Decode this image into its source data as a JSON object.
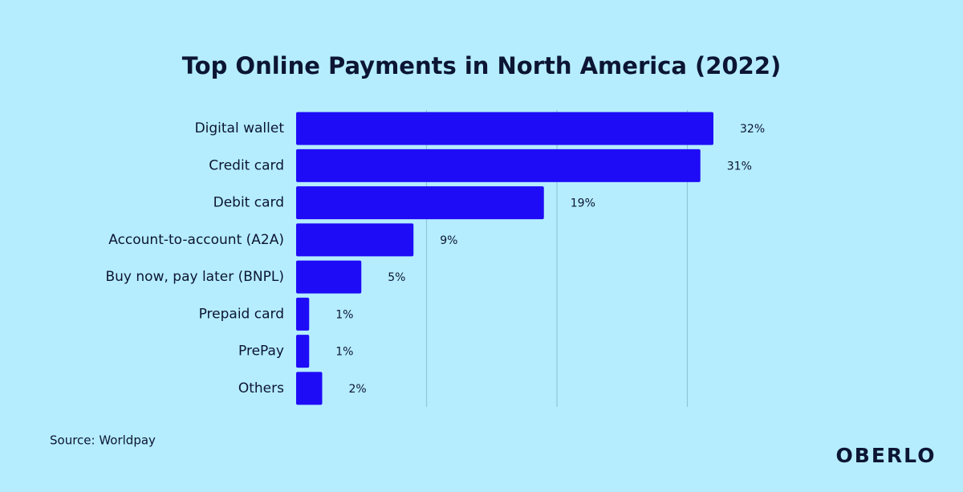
{
  "chart_data": {
    "type": "hbar",
    "title": "Top Online Payments in North America (2022)",
    "categories": [
      "Digital wallet",
      "Credit card",
      "Debit card",
      "Account-to-account (A2A)",
      "Buy now, pay later (BNPL)",
      "Prepaid card",
      "PrePay",
      "Others"
    ],
    "values": [
      32,
      31,
      19,
      9,
      5,
      1,
      1,
      2
    ],
    "value_labels": [
      "32%",
      "31%",
      "19%",
      "9%",
      "5%",
      "1%",
      "1%",
      "2%"
    ],
    "color": "#1f0cf7",
    "xlim": [
      0,
      32
    ],
    "gridlines": [
      10,
      20,
      30
    ],
    "grid": true
  },
  "source": "Source: Worldpay",
  "logo": "OBERLO"
}
